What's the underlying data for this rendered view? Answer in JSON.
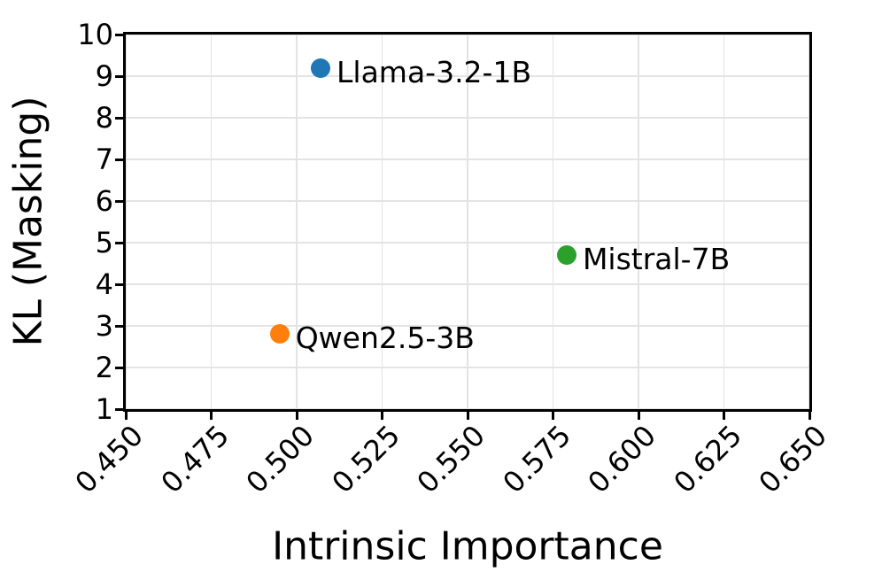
{
  "figure": {
    "background": "#ffffff",
    "axis_color": "#000000",
    "grid_color": "#e3e3e3"
  },
  "chart_data": {
    "type": "scatter",
    "title": "",
    "xlabel": "Intrinsic Importance",
    "ylabel": "KL (Masking)",
    "xlim": [
      0.45,
      0.65
    ],
    "ylim": [
      1,
      10
    ],
    "grid": true,
    "legend_position": "none",
    "x_ticks": {
      "values": [
        0.45,
        0.475,
        0.5,
        0.525,
        0.55,
        0.575,
        0.6,
        0.625,
        0.65
      ],
      "labels": [
        "0.450",
        "0.475",
        "0.500",
        "0.525",
        "0.550",
        "0.575",
        "0.600",
        "0.625",
        "0.650"
      ]
    },
    "y_ticks": {
      "values": [
        1,
        2,
        3,
        4,
        5,
        6,
        7,
        8,
        9,
        10
      ],
      "labels": [
        "1",
        "2",
        "3",
        "4",
        "5",
        "6",
        "7",
        "8",
        "9",
        "10"
      ]
    },
    "points": [
      {
        "label": "Llama-3.2-1B",
        "x": 0.507,
        "y": 9.2,
        "color": "#1f77b4"
      },
      {
        "label": "Qwen2.5-3B",
        "x": 0.495,
        "y": 2.8,
        "color": "#ff7f0e"
      },
      {
        "label": "Mistral-7B",
        "x": 0.579,
        "y": 4.7,
        "color": "#2ca02c"
      }
    ]
  }
}
